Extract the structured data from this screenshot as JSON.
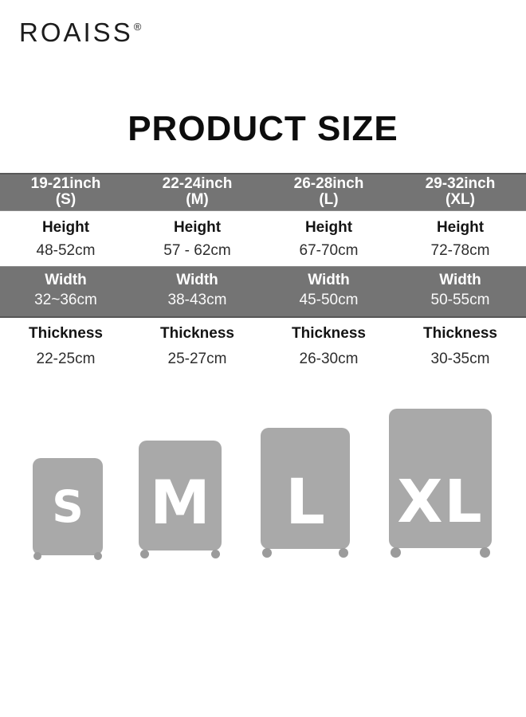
{
  "brand": {
    "name": "ROAISS",
    "registered_mark": "®"
  },
  "title": "PRODUCT SIZE",
  "chart_data": {
    "type": "table",
    "title": "PRODUCT SIZE",
    "columns": [
      {
        "inch": "19-21inch",
        "size": "(S)"
      },
      {
        "inch": "22-24inch",
        "size": "(M)"
      },
      {
        "inch": "26-28inch",
        "size": "(L)"
      },
      {
        "inch": "29-32inch",
        "size": "(XL)"
      }
    ],
    "rows": [
      {
        "label": "Height",
        "values": [
          "48-52cm",
          "57 - 62cm",
          "67-70cm",
          "72-78cm"
        ]
      },
      {
        "label": "Width",
        "values": [
          "32~36cm",
          "38-43cm",
          "45-50cm",
          "50-55cm"
        ]
      },
      {
        "label": "Thickness",
        "values": [
          "22-25cm",
          "25-27cm",
          "26-30cm",
          "30-35cm"
        ]
      }
    ],
    "layout_hints": {
      "striped_rows": true,
      "band_color": "#747474",
      "text_on_band": "#ffffff"
    }
  },
  "illustrations": {
    "cases": [
      {
        "label": "S"
      },
      {
        "label": "M"
      },
      {
        "label": "L"
      },
      {
        "label": "XL"
      }
    ]
  },
  "colors": {
    "band_gray": "#747474",
    "case_gray": "#a9a9a9",
    "wheel_gray": "#9b9b9b",
    "text_black": "#0d0d0d",
    "text_white": "#ffffff"
  }
}
